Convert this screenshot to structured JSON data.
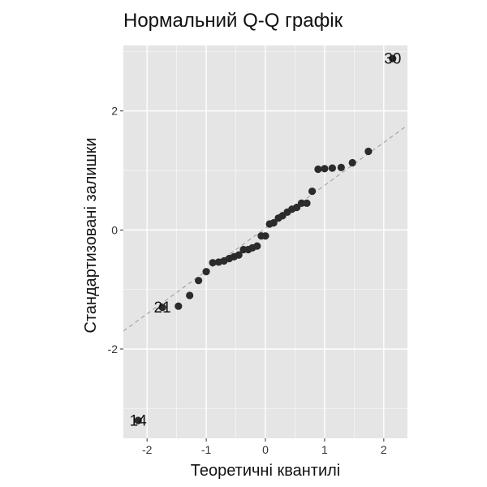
{
  "colors": {
    "panel_background": "#e5e5e5",
    "grid_major": "#ffffff",
    "point": "#2b2b2b",
    "reference_line": "#9a9a9a"
  },
  "chart_data": {
    "type": "scatter",
    "title": "Нормальний Q-Q графік",
    "xlabel": "Теоретичні квантилі",
    "ylabel": "Стандартизовані залишки",
    "xlim": [
      -2.4,
      2.4
    ],
    "ylim": [
      -3.5,
      3.1
    ],
    "x_ticks": [
      -2,
      -1,
      0,
      1,
      2
    ],
    "x_tick_labels": [
      "-2",
      "-1",
      "0",
      "1",
      "2"
    ],
    "y_ticks": [
      -2,
      0,
      2
    ],
    "y_tick_labels": [
      "-2",
      "0",
      "2"
    ],
    "grid": true,
    "reference_line": {
      "style": "dashed",
      "intercept": 0.03,
      "slope": 0.72
    },
    "points": [
      {
        "x": -2.15,
        "y": -3.2,
        "label": "14"
      },
      {
        "x": -1.74,
        "y": -1.3,
        "label": "21"
      },
      {
        "x": -1.47,
        "y": -1.28
      },
      {
        "x": -1.28,
        "y": -1.1
      },
      {
        "x": -1.13,
        "y": -0.85
      },
      {
        "x": -1.0,
        "y": -0.7
      },
      {
        "x": -0.89,
        "y": -0.55
      },
      {
        "x": -0.79,
        "y": -0.54
      },
      {
        "x": -0.7,
        "y": -0.52
      },
      {
        "x": -0.61,
        "y": -0.48
      },
      {
        "x": -0.53,
        "y": -0.45
      },
      {
        "x": -0.45,
        "y": -0.42
      },
      {
        "x": -0.37,
        "y": -0.33
      },
      {
        "x": -0.29,
        "y": -0.33
      },
      {
        "x": -0.22,
        "y": -0.3
      },
      {
        "x": -0.14,
        "y": -0.27
      },
      {
        "x": -0.07,
        "y": -0.1
      },
      {
        "x": 0.0,
        "y": -0.1
      },
      {
        "x": 0.07,
        "y": 0.1
      },
      {
        "x": 0.14,
        "y": 0.12
      },
      {
        "x": 0.22,
        "y": 0.2
      },
      {
        "x": 0.29,
        "y": 0.24
      },
      {
        "x": 0.37,
        "y": 0.3
      },
      {
        "x": 0.45,
        "y": 0.35
      },
      {
        "x": 0.53,
        "y": 0.38
      },
      {
        "x": 0.61,
        "y": 0.45
      },
      {
        "x": 0.7,
        "y": 0.45
      },
      {
        "x": 0.79,
        "y": 0.65
      },
      {
        "x": 0.89,
        "y": 1.02
      },
      {
        "x": 1.0,
        "y": 1.03
      },
      {
        "x": 1.13,
        "y": 1.04
      },
      {
        "x": 1.28,
        "y": 1.05
      },
      {
        "x": 1.47,
        "y": 1.13
      },
      {
        "x": 1.74,
        "y": 1.32
      },
      {
        "x": 2.15,
        "y": 2.88,
        "label": "30"
      }
    ]
  }
}
